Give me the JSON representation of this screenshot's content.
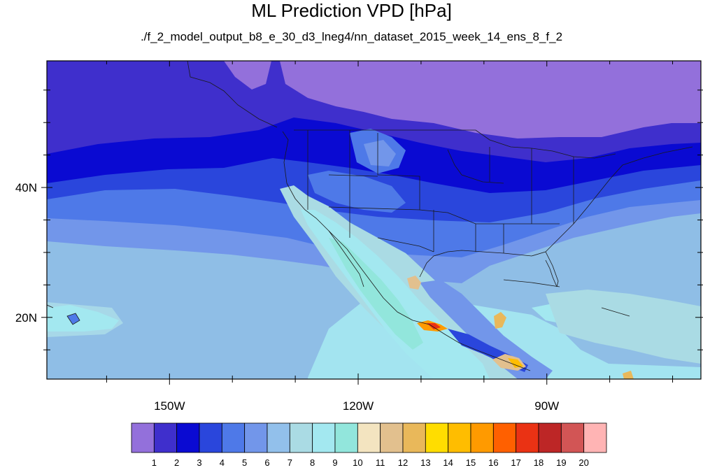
{
  "title": "ML Prediction VPD [hPa]",
  "subtitle": "./f_2_model_output_b8_e_30_d3_lneg4/nn_dataset_2015_week_14_ens_8_f_2",
  "map": {
    "lon_range": [
      -169.5,
      -65.5
    ],
    "lat_range": [
      10.5,
      59.5
    ],
    "lon_ticks": [
      {
        "lon": -150,
        "label": "150W"
      },
      {
        "lon": -120,
        "label": "120W"
      },
      {
        "lon": -90,
        "label": "90W"
      }
    ],
    "lat_ticks": [
      {
        "lat": 40,
        "label": "40N"
      },
      {
        "lat": 20,
        "label": "20N"
      }
    ],
    "ocean_color": "#8fbee6"
  },
  "colorbar": {
    "colors": [
      "#9370db",
      "#3f2fcc",
      "#0a0ad2",
      "#2a46dc",
      "#4e79e8",
      "#7296ea",
      "#92c0eb",
      "#aadbe4",
      "#a3e8f0",
      "#92e6dc",
      "#f3e4c0",
      "#e2c08e",
      "#e9b85a",
      "#ffdd00",
      "#ffbd00",
      "#ff9a00",
      "#ff6000",
      "#ea3214",
      "#bd2626",
      "#d25555",
      "#ffb4b4"
    ],
    "labels": [
      "1",
      "2",
      "3",
      "4",
      "5",
      "6",
      "7",
      "8",
      "9",
      "10",
      "11",
      "12",
      "13",
      "14",
      "15",
      "16",
      "17",
      "18",
      "19",
      "20"
    ]
  }
}
